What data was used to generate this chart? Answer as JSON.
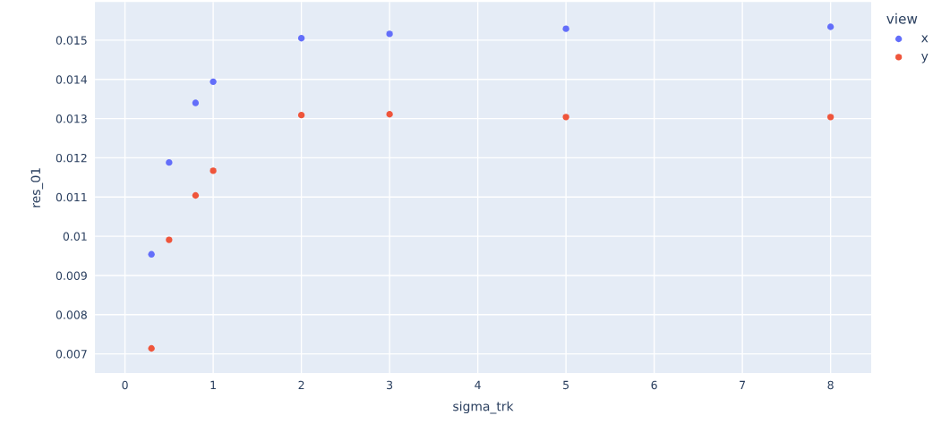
{
  "chart_data": {
    "type": "scatter",
    "xlabel": "sigma_trk",
    "ylabel": "res_01",
    "legend_title": "view",
    "legend": "right",
    "grid": true,
    "marker": "circle",
    "xlim": [
      -0.34,
      8.46
    ],
    "ylim": [
      0.00651,
      0.01597
    ],
    "xticks": [
      0,
      1,
      2,
      3,
      4,
      5,
      6,
      7,
      8
    ],
    "yticks": [
      0.007,
      0.008,
      0.009,
      0.01,
      0.011,
      0.012,
      0.013,
      0.014,
      0.015
    ],
    "series": [
      {
        "name": "x",
        "color": "#636efa",
        "x": [
          0.3,
          0.5,
          0.8,
          1,
          2,
          3,
          5,
          8
        ],
        "values": [
          0.00954,
          0.01188,
          0.0134,
          0.01394,
          0.01505,
          0.01516,
          0.01529,
          0.01534
        ]
      },
      {
        "name": "y",
        "color": "#ef553b",
        "x": [
          0.3,
          0.5,
          0.8,
          1,
          2,
          3,
          5,
          8
        ],
        "values": [
          0.00714,
          0.00991,
          0.01104,
          0.01167,
          0.01309,
          0.01311,
          0.01304,
          0.01304
        ]
      }
    ]
  }
}
